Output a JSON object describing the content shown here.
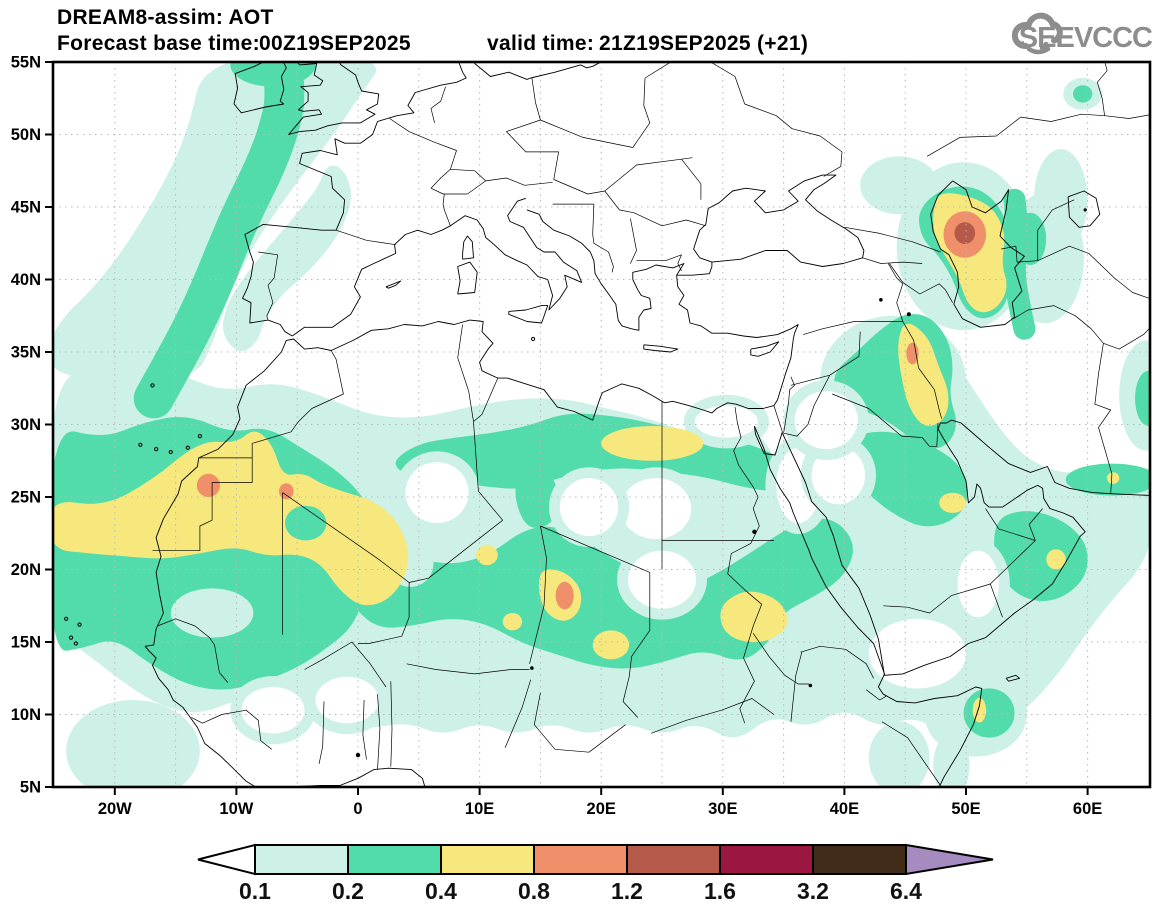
{
  "header": {
    "title": "DREAM8-assim: AOT",
    "base_label": "Forecast base time:",
    "base_value": "00Z19SEP2025",
    "valid_label": "valid time:",
    "valid_value": "21Z19SEP2025 (+21)",
    "logo_text": "SEEVCCC"
  },
  "map": {
    "lat_ticks": [
      "55N",
      "50N",
      "45N",
      "40N",
      "35N",
      "30N",
      "25N",
      "20N",
      "15N",
      "10N",
      "5N"
    ],
    "lat_values": [
      55,
      50,
      45,
      40,
      35,
      30,
      25,
      20,
      15,
      10,
      5
    ],
    "lon_ticks": [
      "20W",
      "10W",
      "0",
      "10E",
      "20E",
      "30E",
      "40E",
      "50E",
      "60E"
    ],
    "lon_values": [
      -20,
      -10,
      0,
      10,
      20,
      30,
      40,
      50,
      60
    ]
  },
  "colorbar": {
    "labels": [
      "0.1",
      "0.2",
      "0.4",
      "0.8",
      "1.2",
      "1.6",
      "3.2",
      "6.4"
    ],
    "colors": [
      "#cdf1e7",
      "#53dcab",
      "#f6e87d",
      "#f0906a",
      "#b5594a",
      "#9b1641",
      "#402c18"
    ],
    "underflow_color": "#ffffff",
    "overflow_color": "#a58bc0"
  },
  "chart_data": {
    "type": "heatmap",
    "subtype": "filled-contour-geographic-map",
    "title": "DREAM8-assim: AOT",
    "variable": "AOT (aerosol optical thickness)",
    "model": "DREAM8-assim",
    "base_time": "00Z19SEP2025",
    "valid_time": "21Z19SEP2025",
    "lead": "+21",
    "extent": {
      "lon_min": -25,
      "lon_max": 65,
      "lat_min": 5,
      "lat_max": 55
    },
    "grid_spacing_deg": 5,
    "levels": [
      0.1,
      0.2,
      0.4,
      0.8,
      1.2,
      1.6,
      3.2,
      6.4
    ],
    "level_colors": [
      "#ffffff",
      "#cdf1e7",
      "#53dcab",
      "#f6e87d",
      "#f0906a",
      "#b5594a",
      "#9b1641",
      "#402c18",
      "#a58bc0"
    ],
    "legend_position": "bottom",
    "grid": "dotted 5-degree graticule",
    "features": [
      {
        "location": "Caucasus / west Caspian coast (~50E, 43N)",
        "aot": "1.2-1.6 peak inside 0.8-1.2 and 0.4-0.8 rings"
      },
      {
        "location": "Eastern Iraq / Zagros (~45.5E, 35N)",
        "aot": "0.8-1.2 spot in 0.4-0.8 band"
      },
      {
        "location": "Western Sahara / N Mauritania (~12W, 26N)",
        "aot": "0.8-1.2 spot"
      },
      {
        "location": "Northern Mali (~6W, 25N)",
        "aot": "0.8-1.2 spot"
      },
      {
        "location": "Chad (~17E, 18N)",
        "aot": "0.8-1.2 spot"
      },
      {
        "location": "Sahara dust belt (25W-35E, 13-30N)",
        "aot": "0.2-0.4 belt with 0.4-0.8 cores"
      },
      {
        "location": "Libya/Egypt coast (~21-28E, 28-30N)",
        "aot": "0.4-0.8"
      },
      {
        "location": "Sudan (~30-35E, 15-18N)",
        "aot": "0.4-0.8"
      },
      {
        "location": "Qatar / Persian Gulf (~49E, 24.5N)",
        "aot": "0.4-0.8"
      },
      {
        "location": "Oman (~57E, 21N)",
        "aot": "0.4-0.8"
      },
      {
        "location": "NE Somalia coast (~51E, 10N)",
        "aot": "0.4-0.8"
      },
      {
        "location": "NE Atlantic plume toward Ireland/UK (20W-0, 30-55N)",
        "aot": "0.2-0.4 band"
      },
      {
        "location": "East Caspian coast (~54E, 37-45N)",
        "aot": "0.2-0.4"
      }
    ]
  }
}
